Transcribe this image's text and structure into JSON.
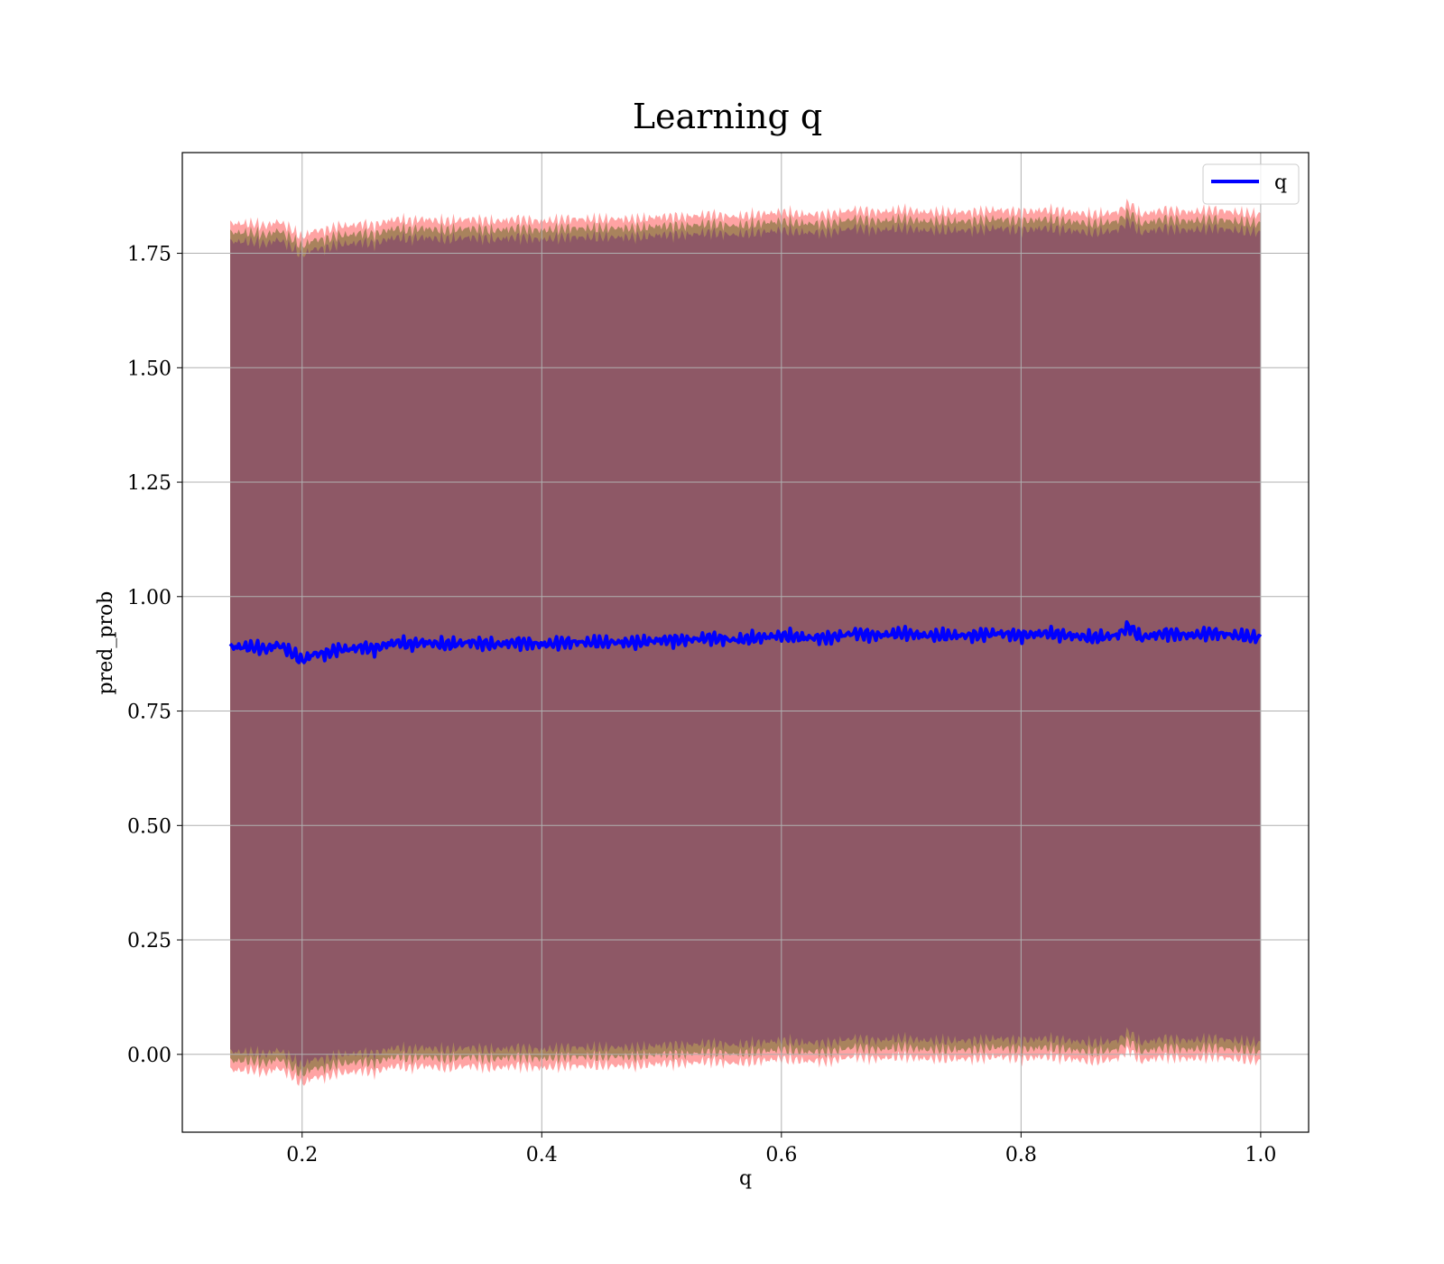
{
  "chart_data": {
    "type": "line",
    "title": "Learning q",
    "xlabel": "q",
    "ylabel": "pred_prob",
    "xlim": [
      0.1,
      1.04
    ],
    "ylim": [
      -0.17,
      1.97
    ],
    "x_ticks": [
      "0.2",
      "0.4",
      "0.6",
      "0.8",
      "1.0"
    ],
    "x_tick_values": [
      0.2,
      0.4,
      0.6,
      0.8,
      1.0
    ],
    "y_ticks": [
      "0.00",
      "0.25",
      "0.50",
      "0.75",
      "1.00",
      "1.25",
      "1.50",
      "1.75"
    ],
    "y_tick_values": [
      0.0,
      0.25,
      0.5,
      0.75,
      1.0,
      1.25,
      1.5,
      1.75
    ],
    "grid": true,
    "legend_position": "top-right",
    "series": [
      {
        "name": "q",
        "color": "#0000ff",
        "x": [
          0.14,
          0.15,
          0.16,
          0.17,
          0.18,
          0.19,
          0.2,
          0.21,
          0.22,
          0.23,
          0.24,
          0.25,
          0.26,
          0.27,
          0.28,
          0.29,
          0.3,
          0.32,
          0.34,
          0.36,
          0.38,
          0.4,
          0.42,
          0.44,
          0.46,
          0.48,
          0.5,
          0.52,
          0.54,
          0.56,
          0.58,
          0.6,
          0.62,
          0.64,
          0.66,
          0.68,
          0.7,
          0.72,
          0.74,
          0.76,
          0.78,
          0.8,
          0.82,
          0.84,
          0.86,
          0.88,
          0.89,
          0.9,
          0.92,
          0.94,
          0.96,
          0.98,
          1.0
        ],
        "y": [
          0.89,
          0.89,
          0.89,
          0.885,
          0.895,
          0.88,
          0.86,
          0.875,
          0.875,
          0.885,
          0.885,
          0.89,
          0.885,
          0.895,
          0.9,
          0.895,
          0.9,
          0.895,
          0.9,
          0.895,
          0.9,
          0.895,
          0.9,
          0.9,
          0.9,
          0.9,
          0.905,
          0.905,
          0.91,
          0.905,
          0.91,
          0.915,
          0.91,
          0.91,
          0.92,
          0.915,
          0.92,
          0.915,
          0.915,
          0.915,
          0.92,
          0.915,
          0.92,
          0.915,
          0.91,
          0.915,
          0.935,
          0.91,
          0.92,
          0.915,
          0.92,
          0.915,
          0.91
        ]
      }
    ],
    "bands": [
      {
        "color": "#ff6666",
        "opacity": 0.6,
        "offset_upper": 0.925,
        "offset_lower": 0.925
      },
      {
        "color": "#a07f55",
        "opacity": 0.9,
        "offset_upper": 0.905,
        "offset_lower": 0.905
      },
      {
        "color": "#8b5367",
        "opacity": 0.9,
        "offset_upper": 0.885,
        "offset_lower": 0.885
      }
    ]
  }
}
